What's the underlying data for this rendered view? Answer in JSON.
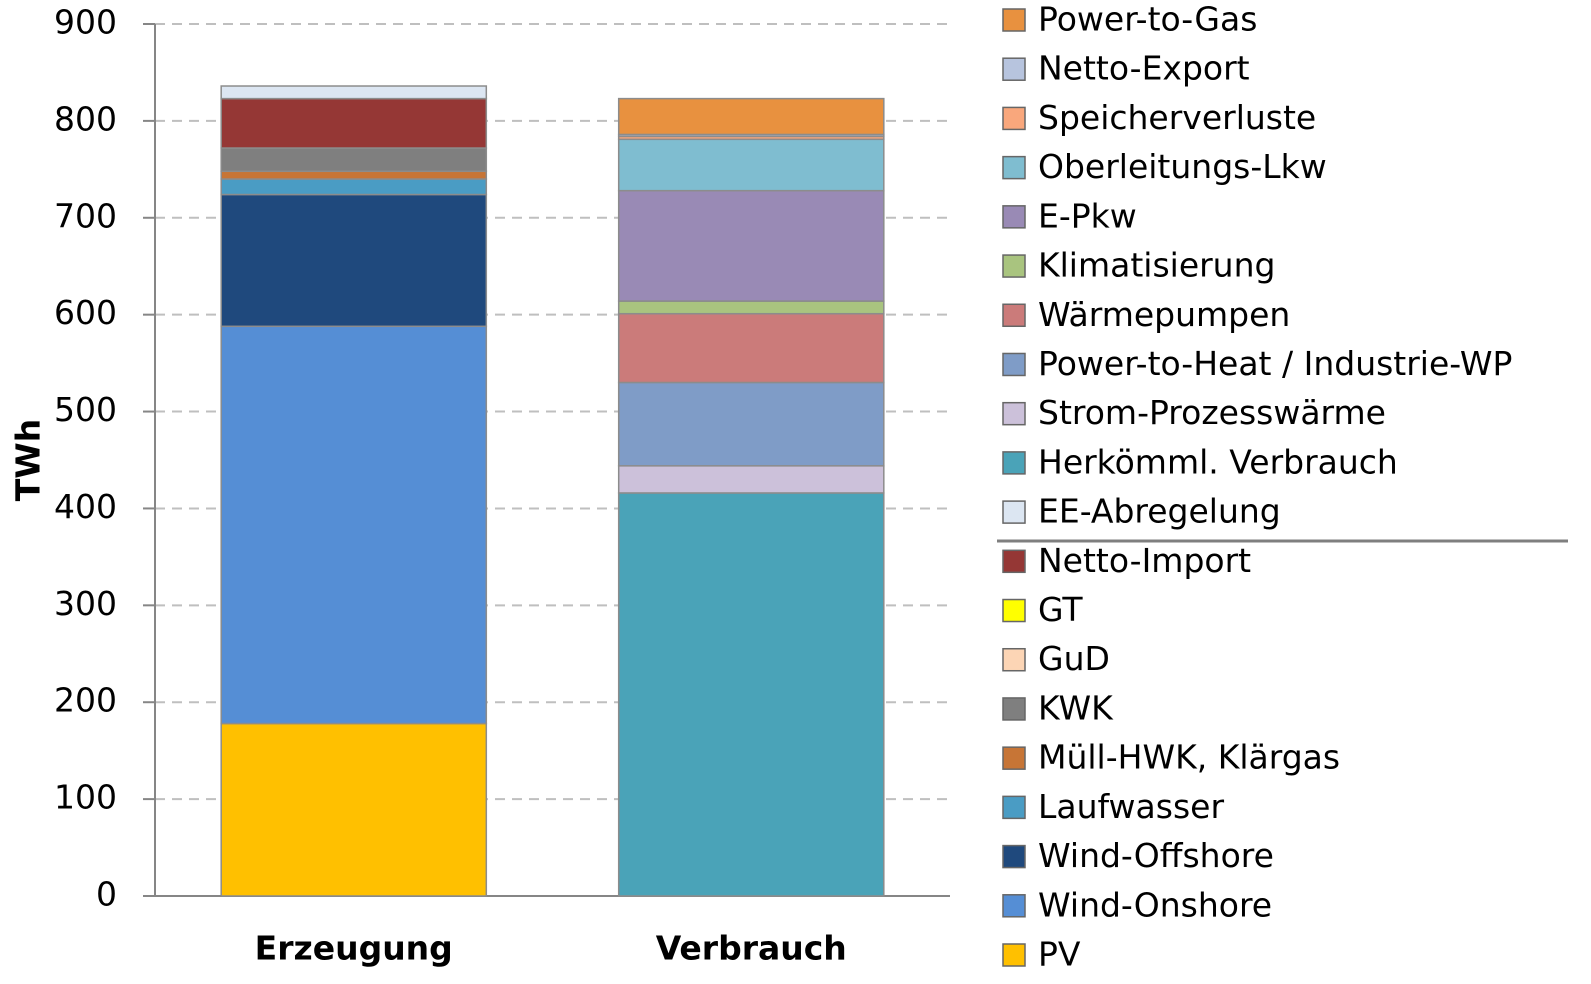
{
  "chart_data": {
    "type": "stacked_bar",
    "y_label": "TWh",
    "categories": [
      "Erzeugung",
      "Verbrauch"
    ],
    "ylim": [
      0,
      900
    ],
    "yticks": [
      0,
      100,
      200,
      300,
      400,
      500,
      600,
      700,
      800,
      900
    ],
    "grid": true,
    "series": [
      {
        "name": "PV",
        "color": "#ffc000",
        "values": [
          178,
          null
        ]
      },
      {
        "name": "Wind-Onshore",
        "color": "#558ed5",
        "values": [
          410,
          null
        ]
      },
      {
        "name": "Wind-Offshore",
        "color": "#1f497d",
        "values": [
          136,
          null
        ]
      },
      {
        "name": "Laufwasser",
        "color": "#4a9cc4",
        "values": [
          16,
          null
        ]
      },
      {
        "name": "Müll-HWK, Klärgas",
        "color": "#c77536",
        "values": [
          8,
          null
        ]
      },
      {
        "name": "KWK",
        "color": "#7f7f7f",
        "values": [
          24,
          null
        ]
      },
      {
        "name": "GuD",
        "color": "#fcd5b5",
        "values": [
          0,
          null
        ]
      },
      {
        "name": "GT",
        "color": "#ffff00",
        "values": [
          0,
          null
        ]
      },
      {
        "name": "Netto-Import",
        "color": "#953735",
        "values": [
          51,
          null
        ]
      },
      {
        "name": "EE-Abregelung",
        "color": "#dce6f2",
        "values": [
          13,
          null
        ]
      },
      {
        "name": "Herkömml. Verbrauch",
        "color": "#4aa3b8",
        "values": [
          null,
          416
        ]
      },
      {
        "name": "Strom-Prozesswärme",
        "color": "#ccc1da",
        "values": [
          null,
          28
        ]
      },
      {
        "name": "Power-to-Heat / Industrie-WP",
        "color": "#7f9cc7",
        "values": [
          null,
          86
        ]
      },
      {
        "name": "Wärmepumpen",
        "color": "#cb7b7a",
        "values": [
          null,
          71
        ]
      },
      {
        "name": "Klimatisierung",
        "color": "#a9c47f",
        "values": [
          null,
          13
        ]
      },
      {
        "name": "E-Pkw",
        "color": "#998ab5",
        "values": [
          null,
          114
        ]
      },
      {
        "name": "Oberleitungs-Lkw",
        "color": "#7fbdd0",
        "values": [
          null,
          53
        ]
      },
      {
        "name": "Speicherverluste",
        "color": "#f9a77c",
        "values": [
          null,
          3
        ]
      },
      {
        "name": "Netto-Export",
        "color": "#b7c4de",
        "values": [
          null,
          2
        ]
      },
      {
        "name": "Power-to-Gas",
        "color": "#e8913f",
        "values": [
          null,
          37
        ]
      }
    ]
  }
}
